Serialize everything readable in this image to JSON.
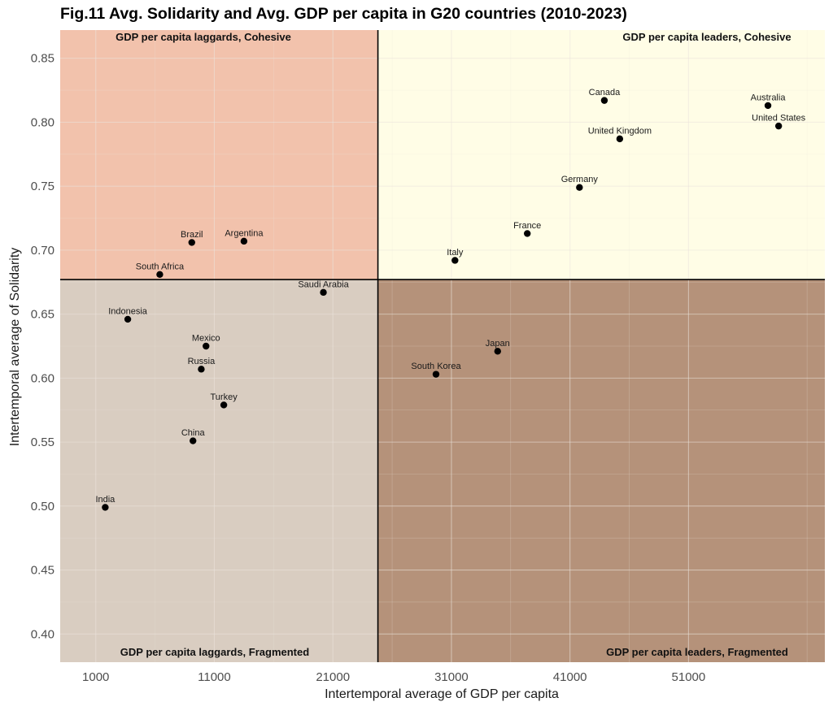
{
  "chart_data": {
    "type": "scatter",
    "title": "Fig.11 Avg. Solidarity and Avg. GDP per capita in G20 countries (2010-2023)",
    "xlabel": "Intertemporal average of GDP per capita",
    "ylabel": "Intertemporal average of Solidarity",
    "xlim": [
      -2000,
      62500
    ],
    "ylim": [
      0.378,
      0.872
    ],
    "xticks": [
      1000,
      11000,
      21000,
      31000,
      41000,
      51000
    ],
    "yticks": [
      0.4,
      0.45,
      0.5,
      0.55,
      0.6,
      0.65,
      0.7,
      0.75,
      0.8,
      0.85
    ],
    "grid": true,
    "threshold_x": 24800,
    "threshold_y": 0.677,
    "quadrants": [
      {
        "label": "GDP per capita laggards, Cohesive",
        "color": "#f2c2ac"
      },
      {
        "label": "GDP per capita leaders, Cohesive",
        "color": "#fffde6"
      },
      {
        "label": "GDP per capita laggards, Fragmented",
        "color": "#d9cdc1"
      },
      {
        "label": "GDP per capita leaders, Fragmented",
        "color": "#b5927a"
      }
    ],
    "points": [
      {
        "country": "Canada",
        "x": 43900,
        "y": 0.817
      },
      {
        "country": "Australia",
        "x": 57700,
        "y": 0.813
      },
      {
        "country": "United States",
        "x": 58600,
        "y": 0.797
      },
      {
        "country": "United Kingdom",
        "x": 45200,
        "y": 0.787
      },
      {
        "country": "Germany",
        "x": 41800,
        "y": 0.749
      },
      {
        "country": "France",
        "x": 37400,
        "y": 0.713
      },
      {
        "country": "Italy",
        "x": 31300,
        "y": 0.692
      },
      {
        "country": "Brazil",
        "x": 9100,
        "y": 0.706
      },
      {
        "country": "Argentina",
        "x": 13500,
        "y": 0.707
      },
      {
        "country": "South Africa",
        "x": 6400,
        "y": 0.681
      },
      {
        "country": "Saudi Arabia",
        "x": 20200,
        "y": 0.667
      },
      {
        "country": "Indonesia",
        "x": 3700,
        "y": 0.646
      },
      {
        "country": "Mexico",
        "x": 10300,
        "y": 0.625
      },
      {
        "country": "Russia",
        "x": 9900,
        "y": 0.607
      },
      {
        "country": "Turkey",
        "x": 11800,
        "y": 0.579
      },
      {
        "country": "China",
        "x": 9200,
        "y": 0.551
      },
      {
        "country": "India",
        "x": 1800,
        "y": 0.499
      },
      {
        "country": "Japan",
        "x": 34900,
        "y": 0.621
      },
      {
        "country": "South Korea",
        "x": 29700,
        "y": 0.603
      }
    ]
  }
}
